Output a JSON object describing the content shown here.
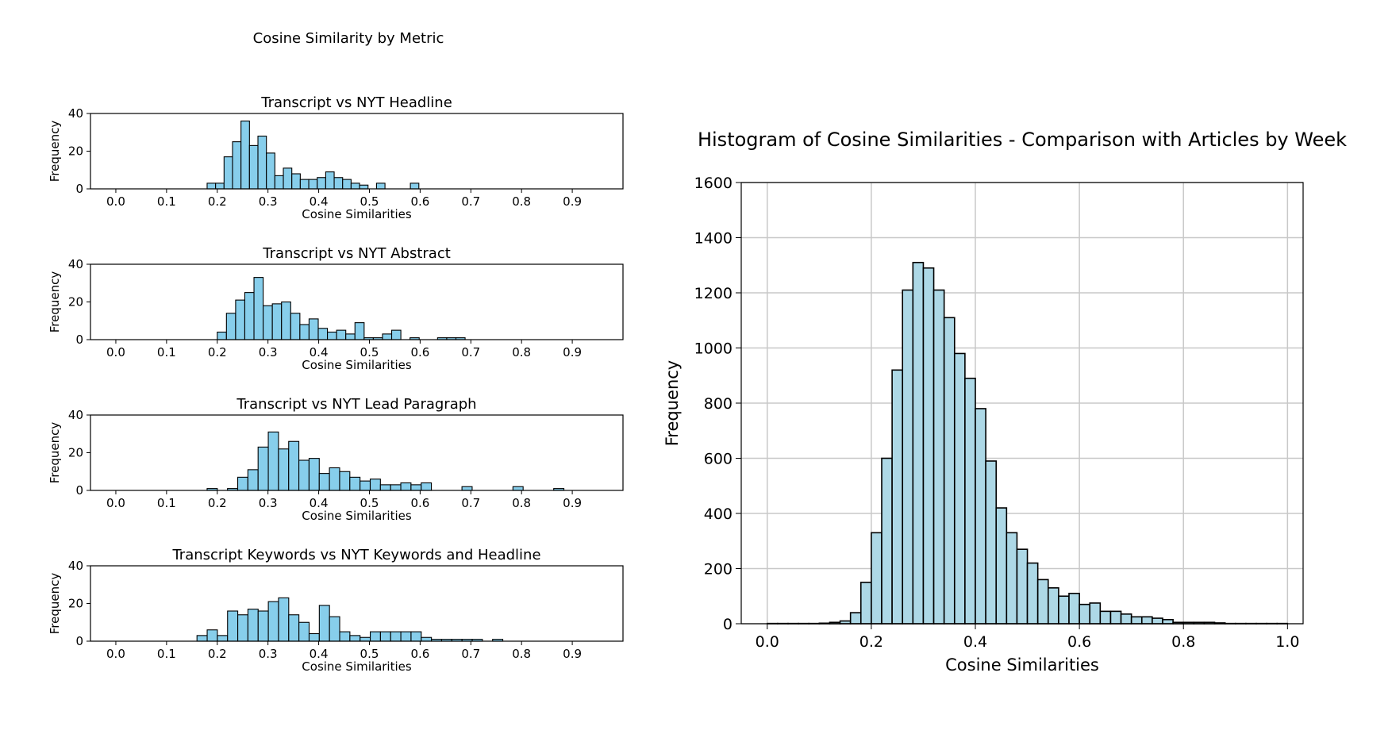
{
  "suptitle_left": "Cosine Similarity by Metric",
  "chart_data": [
    {
      "type": "bar",
      "title": "Transcript vs NYT Headline",
      "xlabel": "Cosine Similarities",
      "ylabel": "Frequency",
      "xlim": [
        -0.05,
        1.0
      ],
      "ylim": [
        0,
        40
      ],
      "xticks": [
        "0.0",
        "0.1",
        "0.2",
        "0.3",
        "0.4",
        "0.5",
        "0.6",
        "0.7",
        "0.8",
        "0.9"
      ],
      "yticks": [
        "0",
        "20",
        "40"
      ],
      "bar_color": "#87ceeb",
      "bin_start": 0.18,
      "bin_width": 0.0167,
      "values": [
        3,
        3,
        17,
        25,
        36,
        23,
        28,
        19,
        7,
        11,
        8,
        5,
        5,
        6,
        9,
        6,
        5,
        3,
        2,
        0,
        3,
        0,
        0,
        0,
        3
      ],
      "grid": false
    },
    {
      "type": "bar",
      "title": "Transcript vs NYT Abstract",
      "xlabel": "Cosine Similarities",
      "ylabel": "Frequency",
      "xlim": [
        -0.05,
        1.0
      ],
      "ylim": [
        0,
        40
      ],
      "xticks": [
        "0.0",
        "0.1",
        "0.2",
        "0.3",
        "0.4",
        "0.5",
        "0.6",
        "0.7",
        "0.8",
        "0.9"
      ],
      "yticks": [
        "0",
        "20",
        "40"
      ],
      "bar_color": "#87ceeb",
      "bin_start": 0.2,
      "bin_width": 0.0181,
      "values": [
        4,
        14,
        21,
        25,
        33,
        18,
        19,
        20,
        14,
        8,
        11,
        6,
        4,
        5,
        3,
        9,
        1,
        1,
        3,
        5,
        0,
        1,
        0,
        0,
        1,
        1,
        1
      ],
      "grid": false
    },
    {
      "type": "bar",
      "title": "Transcript vs NYT Lead Paragraph",
      "xlabel": "Cosine Similarities",
      "ylabel": "Frequency",
      "xlim": [
        -0.05,
        1.0
      ],
      "ylim": [
        0,
        40
      ],
      "xticks": [
        "0.0",
        "0.1",
        "0.2",
        "0.3",
        "0.4",
        "0.5",
        "0.6",
        "0.7",
        "0.8",
        "0.9"
      ],
      "yticks": [
        "0",
        "20",
        "40"
      ],
      "bar_color": "#87ceeb",
      "bin_start": 0.18,
      "bin_width": 0.0201,
      "values": [
        1,
        0,
        1,
        7,
        11,
        23,
        31,
        22,
        26,
        16,
        17,
        9,
        12,
        10,
        7,
        5,
        6,
        3,
        3,
        4,
        3,
        4,
        0,
        0,
        0,
        2,
        0,
        0,
        0,
        0,
        2,
        0,
        0,
        0,
        1
      ],
      "grid": false
    },
    {
      "type": "bar",
      "title": "Transcript Keywords vs NYT Keywords and Headline",
      "xlabel": "Cosine Similarities",
      "ylabel": "Frequency",
      "xlim": [
        -0.05,
        1.0
      ],
      "ylim": [
        0,
        40
      ],
      "xticks": [
        "0.0",
        "0.1",
        "0.2",
        "0.3",
        "0.4",
        "0.5",
        "0.6",
        "0.7",
        "0.8",
        "0.9"
      ],
      "yticks": [
        "0",
        "20",
        "40"
      ],
      "bar_color": "#87ceeb",
      "bin_start": 0.16,
      "bin_width": 0.0201,
      "values": [
        3,
        6,
        3,
        16,
        14,
        17,
        16,
        21,
        23,
        14,
        10,
        4,
        19,
        13,
        5,
        3,
        2,
        5,
        5,
        5,
        5,
        5,
        2,
        1,
        1,
        1,
        1,
        1,
        0,
        1
      ],
      "grid": false
    },
    {
      "type": "bar",
      "title": "Histogram of Cosine Similarities - Comparison with Articles by Week",
      "xlabel": "Cosine Similarities",
      "ylabel": "Frequency",
      "xlim": [
        -0.05,
        1.03
      ],
      "ylim": [
        0,
        1600
      ],
      "xticks": [
        "0.0",
        "0.2",
        "0.4",
        "0.6",
        "0.8",
        "1.0"
      ],
      "yticks": [
        "0",
        "200",
        "400",
        "600",
        "800",
        "1000",
        "1200",
        "1400",
        "1600"
      ],
      "bar_color": "#add8e6",
      "grid": true,
      "bin_start": 0.0,
      "bin_width": 0.02,
      "values": [
        1,
        1,
        1,
        1,
        1,
        2,
        5,
        10,
        40,
        150,
        330,
        600,
        920,
        1210,
        1310,
        1290,
        1210,
        1110,
        980,
        890,
        780,
        590,
        420,
        330,
        270,
        220,
        160,
        130,
        100,
        110,
        70,
        75,
        45,
        45,
        35,
        25,
        25,
        20,
        15,
        5,
        5,
        5,
        5,
        3,
        1,
        1,
        1,
        1,
        1,
        1
      ]
    }
  ]
}
